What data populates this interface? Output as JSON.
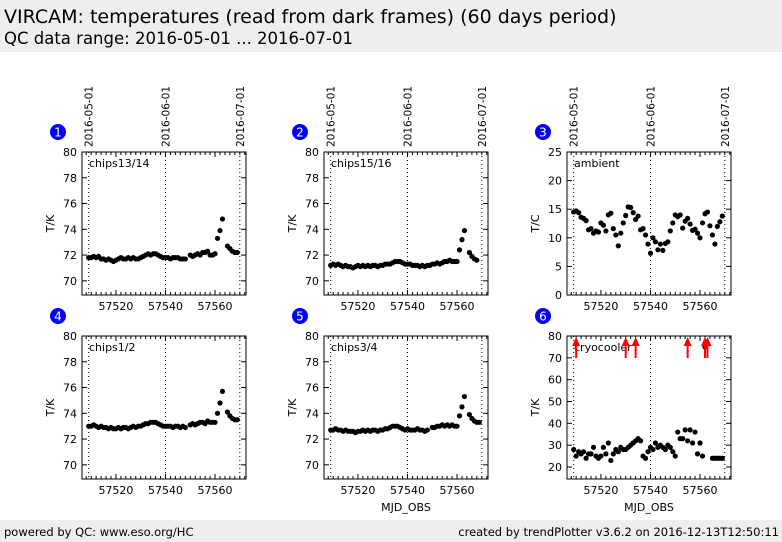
{
  "header": {
    "title": "VIRCAM: temperatures (read from dark frames) (60 days period)",
    "subtitle": "QC data range: 2016-05-01 ... 2016-07-01"
  },
  "footer": {
    "left": "powered by QC: www.eso.org/HC",
    "right": "created by trendPlotter v3.6.2 on 2016-12-13T12:50:11"
  },
  "colors": {
    "badge": "#0000ff",
    "points": "#000000",
    "out_of_range_arrow": "#ff0000"
  },
  "chart_data": {
    "type": "scatter",
    "xlabel": "MJD_OBS",
    "xlim": [
      57506.3,
      57572.5
    ],
    "xticks": [
      57520,
      57540,
      57560
    ],
    "date_markers": [
      {
        "x": 57509,
        "label": "2016-05-01"
      },
      {
        "x": 57540,
        "label": "2016-06-01"
      },
      {
        "x": 57570,
        "label": "2016-07-01"
      }
    ],
    "x": [
      57509,
      57510,
      57511,
      57512,
      57513,
      57514,
      57515,
      57516,
      57517,
      57518,
      57519,
      57520,
      57521,
      57522,
      57523,
      57524,
      57525,
      57526,
      57527,
      57528,
      57529,
      57530,
      57531,
      57532,
      57533,
      57534,
      57535,
      57536,
      57537,
      57538,
      57539,
      57540,
      57541,
      57542,
      57543,
      57544,
      57545,
      57546,
      57547,
      57548,
      57549,
      57550,
      57551,
      57552,
      57553,
      57554,
      57555,
      57556,
      57557,
      57558,
      57559,
      57560,
      57561,
      57562,
      57563,
      57564,
      57565,
      57566,
      57567,
      57568,
      57569
    ],
    "panels": [
      {
        "badge": "1",
        "label": "chips13/14",
        "ylabel": "T/K",
        "ylim": [
          68.9,
          80
        ],
        "yticks": [
          70,
          72,
          74,
          76,
          78,
          80
        ],
        "show_dates": true,
        "show_xlabel": false,
        "y": [
          71.8,
          71.8,
          71.9,
          71.8,
          71.9,
          71.7,
          71.7,
          71.6,
          71.7,
          71.6,
          71.5,
          71.6,
          71.7,
          71.8,
          71.7,
          71.7,
          71.8,
          71.7,
          71.8,
          71.7,
          71.7,
          71.8,
          71.9,
          72.0,
          72.1,
          72.0,
          72.1,
          72.1,
          72.0,
          71.9,
          71.8,
          71.8,
          71.8,
          71.7,
          71.8,
          71.8,
          71.8,
          71.7,
          71.7,
          71.7,
          null,
          72.0,
          71.9,
          72.0,
          72.1,
          72.0,
          72.2,
          72.2,
          72.3,
          72.0,
          72.0,
          72.1,
          73.3,
          73.9,
          74.8,
          null,
          72.7,
          72.5,
          72.3,
          72.2,
          72.2
        ]
      },
      {
        "badge": "2",
        "label": "chips15/16",
        "ylabel": "T/K",
        "ylim": [
          68.9,
          80
        ],
        "yticks": [
          70,
          72,
          74,
          76,
          78,
          80
        ],
        "show_dates": true,
        "show_xlabel": false,
        "y": [
          71.2,
          71.3,
          71.2,
          71.3,
          71.2,
          71.1,
          71.2,
          71.1,
          71.1,
          71.0,
          71.1,
          71.2,
          71.1,
          71.2,
          71.1,
          71.2,
          71.1,
          71.2,
          71.2,
          71.1,
          71.2,
          71.2,
          71.3,
          71.3,
          71.3,
          71.4,
          71.5,
          71.5,
          71.5,
          71.4,
          71.3,
          71.3,
          71.3,
          71.2,
          71.2,
          71.2,
          71.1,
          71.2,
          71.1,
          71.2,
          71.2,
          71.3,
          71.3,
          71.4,
          71.3,
          71.4,
          71.5,
          71.5,
          71.6,
          71.5,
          71.5,
          71.5,
          72.4,
          73.2,
          73.9,
          null,
          72.2,
          71.9,
          71.7,
          71.6,
          null
        ]
      },
      {
        "badge": "3",
        "label": "ambient",
        "ylabel": "T/C",
        "ylim": [
          0,
          25
        ],
        "yticks": [
          0,
          5,
          10,
          15,
          20,
          25
        ],
        "show_dates": true,
        "show_xlabel": false,
        "y": [
          14.5,
          14.7,
          14.4,
          13.6,
          13.4,
          13.0,
          11.4,
          11.6,
          10.8,
          11.2,
          11.0,
          12.6,
          12.2,
          11.2,
          14.0,
          14.3,
          11.6,
          10.5,
          8.6,
          10.8,
          12.6,
          13.9,
          15.4,
          15.3,
          14.4,
          13.2,
          13.8,
          11.4,
          11.6,
          10.5,
          8.9,
          7.3,
          10.0,
          9.3,
          7.9,
          8.9,
          7.8,
          9.0,
          9.3,
          11.2,
          12.6,
          14.0,
          13.7,
          14.0,
          11.7,
          12.9,
          13.4,
          12.4,
          11.3,
          11.5,
          10.8,
          10.0,
          12.6,
          14.2,
          14.5,
          12.1,
          10.5,
          8.9,
          12.0,
          12.8,
          13.8
        ]
      },
      {
        "badge": "4",
        "label": "chips1/2",
        "ylabel": "T/K",
        "ylim": [
          68.9,
          80
        ],
        "yticks": [
          70,
          72,
          74,
          76,
          78,
          80
        ],
        "show_dates": false,
        "show_xlabel": false,
        "y": [
          73.0,
          73.0,
          73.1,
          73.0,
          72.9,
          73.0,
          72.9,
          72.9,
          72.8,
          72.9,
          72.8,
          72.8,
          72.9,
          72.8,
          72.9,
          72.9,
          72.8,
          72.9,
          73.0,
          72.9,
          73.0,
          73.0,
          73.1,
          73.2,
          73.2,
          73.3,
          73.3,
          73.3,
          73.2,
          73.1,
          73.0,
          73.0,
          73.0,
          73.0,
          72.9,
          73.0,
          73.0,
          72.9,
          73.0,
          72.9,
          null,
          73.1,
          73.2,
          73.1,
          73.2,
          73.3,
          73.3,
          73.2,
          73.4,
          73.3,
          73.3,
          73.3,
          74.0,
          74.8,
          75.7,
          null,
          74.1,
          73.8,
          73.6,
          73.5,
          73.5
        ]
      },
      {
        "badge": "5",
        "label": "chips3/4",
        "ylabel": "T/K",
        "ylim": [
          68.9,
          80
        ],
        "yticks": [
          70,
          72,
          74,
          76,
          78,
          80
        ],
        "show_dates": false,
        "show_xlabel": true,
        "y": [
          72.7,
          72.7,
          72.8,
          72.7,
          72.7,
          72.6,
          72.7,
          72.6,
          72.6,
          72.6,
          72.5,
          72.6,
          72.6,
          72.7,
          72.6,
          72.7,
          72.6,
          72.7,
          72.7,
          72.6,
          72.7,
          72.7,
          72.8,
          72.8,
          72.9,
          73.0,
          73.0,
          73.0,
          72.9,
          72.8,
          72.7,
          72.8,
          72.7,
          72.7,
          72.7,
          72.8,
          72.7,
          72.7,
          72.6,
          72.7,
          null,
          72.9,
          72.9,
          73.0,
          73.0,
          73.1,
          73.0,
          73.1,
          73.0,
          73.1,
          73.0,
          73.0,
          73.8,
          74.5,
          75.3,
          null,
          73.9,
          73.6,
          73.4,
          73.3,
          73.3
        ]
      },
      {
        "badge": "6",
        "label": "cryocooler",
        "ylabel": "T/K",
        "ylim": [
          14.5,
          80
        ],
        "yticks": [
          20,
          30,
          40,
          50,
          60,
          70,
          80
        ],
        "show_dates": false,
        "show_xlabel": true,
        "y": [
          28,
          25,
          27,
          26,
          27,
          24,
          26,
          26,
          29,
          25,
          24,
          25,
          29,
          26,
          31,
          23,
          26,
          28,
          27,
          29,
          28,
          28,
          29,
          30,
          31,
          32,
          33,
          32,
          25,
          24,
          27,
          29,
          28,
          31,
          29,
          30,
          29,
          28,
          30,
          29,
          27,
          25,
          36,
          33,
          33,
          37,
          32,
          37,
          31,
          36,
          26,
          31,
          25,
          75,
          null,
          null,
          24,
          24,
          24,
          24,
          24
        ],
        "out_of_range_x": [
          57510,
          57530,
          57534,
          57555,
          57562,
          57563
        ]
      }
    ]
  }
}
